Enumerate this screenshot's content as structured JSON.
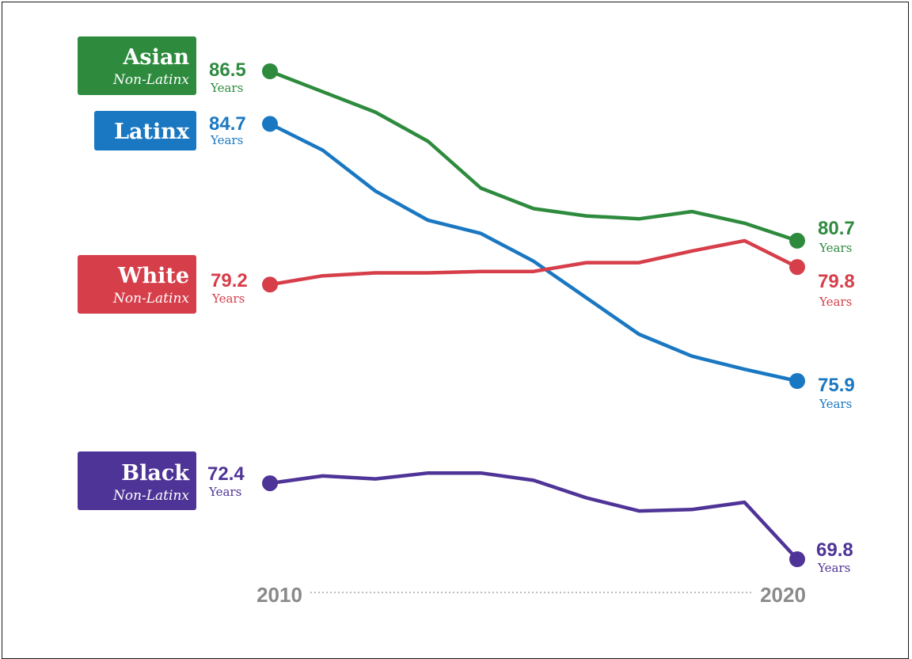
{
  "chart_data": {
    "type": "line",
    "x": [
      2010,
      2011,
      2012,
      2013,
      2014,
      2015,
      2016,
      2017,
      2018,
      2019,
      2020
    ],
    "x_tick_labels": [
      "2010",
      "2020"
    ],
    "unit_label": "Years",
    "grid": false,
    "legend": "left, label boxes",
    "series": [
      {
        "key": "asian",
        "name": "Asian",
        "subname": "Non-Latinx",
        "color": "#2e8b3e",
        "values": [
          86.5,
          85.8,
          85.1,
          84.1,
          82.5,
          81.8,
          81.55,
          81.45,
          81.7,
          81.3,
          80.7
        ],
        "start_label": "86.5",
        "end_label": "80.7"
      },
      {
        "key": "latinx",
        "name": "Latinx",
        "subname": "",
        "color": "#1a78c2",
        "values": [
          84.7,
          83.8,
          82.4,
          81.4,
          80.95,
          80.0,
          78.75,
          77.5,
          76.75,
          76.3,
          75.9
        ],
        "start_label": "84.7",
        "end_label": "75.9"
      },
      {
        "key": "white",
        "name": "White",
        "subname": "Non-Latinx",
        "color": "#d63e4a",
        "values": [
          79.2,
          79.5,
          79.6,
          79.6,
          79.65,
          79.65,
          79.95,
          79.95,
          80.35,
          80.7,
          79.8
        ],
        "start_label": "79.2",
        "end_label": "79.8"
      },
      {
        "key": "black",
        "name": "Black",
        "subname": "Non-Latinx",
        "color": "#4f3497",
        "values": [
          72.4,
          72.65,
          72.55,
          72.75,
          72.75,
          72.5,
          71.9,
          71.45,
          71.5,
          71.75,
          69.8
        ],
        "start_label": "72.4",
        "end_label": "69.8"
      }
    ]
  }
}
